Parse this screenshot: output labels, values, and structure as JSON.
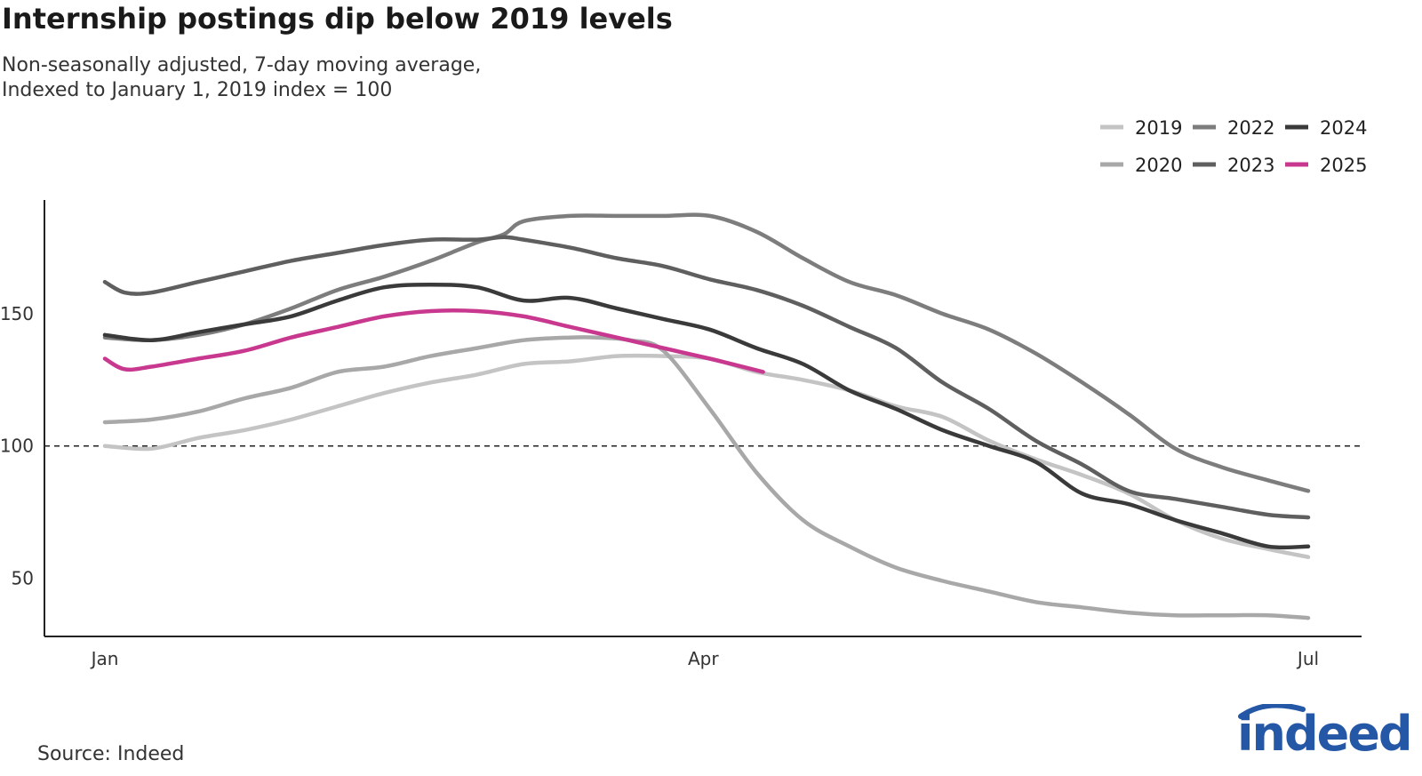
{
  "chart_data": {
    "type": "line",
    "title": "Internship postings dip below 2019 levels",
    "subtitle_lines": [
      "Non-seasonally adjusted, 7-day moving average,",
      "Indexed to January 1, 2019 index = 100"
    ],
    "x_tick_labels": [
      "Jan",
      "Apr",
      "Jul"
    ],
    "x_range_days": [
      1,
      182
    ],
    "y_ticks": [
      50,
      100,
      150
    ],
    "y_tick_labels": [
      "50",
      "100",
      "150"
    ],
    "ylim": [
      28,
      193
    ],
    "reference_line": 100,
    "series": [
      {
        "name": "2019",
        "color": "#c4c4c4",
        "x": [
          1,
          8,
          15,
          22,
          29,
          36,
          43,
          50,
          57,
          64,
          71,
          78,
          85,
          92,
          99,
          106,
          113,
          120,
          127,
          134,
          141,
          148,
          155,
          162,
          169,
          176,
          182
        ],
        "values": [
          100,
          99,
          103,
          106,
          110,
          115,
          120,
          124,
          127,
          131,
          132,
          134,
          134,
          133,
          128,
          125,
          121,
          115,
          111,
          102,
          95,
          89,
          82,
          72,
          65,
          61,
          58
        ]
      },
      {
        "name": "2020",
        "color": "#a8a8a8",
        "x": [
          1,
          8,
          15,
          22,
          29,
          36,
          43,
          50,
          57,
          64,
          71,
          75,
          80,
          85,
          92,
          99,
          106,
          113,
          120,
          127,
          134,
          141,
          148,
          155,
          162,
          169,
          176,
          182
        ],
        "values": [
          109,
          110,
          113,
          118,
          122,
          128,
          130,
          134,
          137,
          140,
          141,
          141,
          140,
          136,
          114,
          90,
          72,
          62,
          54,
          49,
          45,
          41,
          39,
          37,
          36,
          36,
          36,
          35
        ]
      },
      {
        "name": "2022",
        "color": "#7d7d7d",
        "x": [
          1,
          8,
          15,
          22,
          29,
          36,
          43,
          50,
          57,
          61,
          64,
          71,
          78,
          85,
          92,
          99,
          106,
          113,
          120,
          127,
          134,
          141,
          148,
          155,
          162,
          169,
          176,
          182
        ],
        "values": [
          141,
          140,
          142,
          146,
          152,
          159,
          164,
          170,
          177,
          180,
          185,
          187,
          187,
          187,
          187,
          181,
          171,
          162,
          157,
          150,
          144,
          135,
          124,
          112,
          99,
          92,
          87,
          83
        ]
      },
      {
        "name": "2023",
        "color": "#5f5f5f",
        "x": [
          1,
          4,
          8,
          15,
          22,
          29,
          36,
          43,
          50,
          57,
          61,
          64,
          71,
          78,
          85,
          92,
          99,
          106,
          113,
          120,
          127,
          134,
          141,
          148,
          155,
          162,
          169,
          176,
          182
        ],
        "values": [
          162,
          158,
          158,
          162,
          166,
          170,
          173,
          176,
          178,
          178,
          179,
          178,
          175,
          171,
          168,
          163,
          159,
          153,
          145,
          137,
          124,
          114,
          102,
          93,
          83,
          80,
          77,
          74,
          73
        ]
      },
      {
        "name": "2024",
        "color": "#3a3a3a",
        "x": [
          1,
          8,
          15,
          22,
          29,
          36,
          43,
          50,
          57,
          64,
          71,
          78,
          85,
          92,
          99,
          106,
          113,
          120,
          127,
          134,
          141,
          148,
          155,
          162,
          169,
          176,
          182
        ],
        "values": [
          142,
          140,
          143,
          146,
          149,
          155,
          160,
          161,
          160,
          155,
          156,
          152,
          148,
          144,
          137,
          131,
          121,
          114,
          106,
          100,
          94,
          82,
          78,
          72,
          67,
          62,
          62
        ]
      },
      {
        "name": "2025",
        "color": "#c8388f",
        "x": [
          1,
          4,
          8,
          15,
          22,
          29,
          36,
          43,
          50,
          57,
          64,
          71,
          78,
          85,
          92,
          100
        ],
        "values": [
          133,
          129,
          130,
          133,
          136,
          141,
          145,
          149,
          151,
          151,
          149,
          145,
          141,
          137,
          133,
          128
        ]
      }
    ],
    "legend_position": "top-right"
  },
  "source": "Source: Indeed",
  "logo": {
    "text": "indeed",
    "color": "#2557a7"
  }
}
